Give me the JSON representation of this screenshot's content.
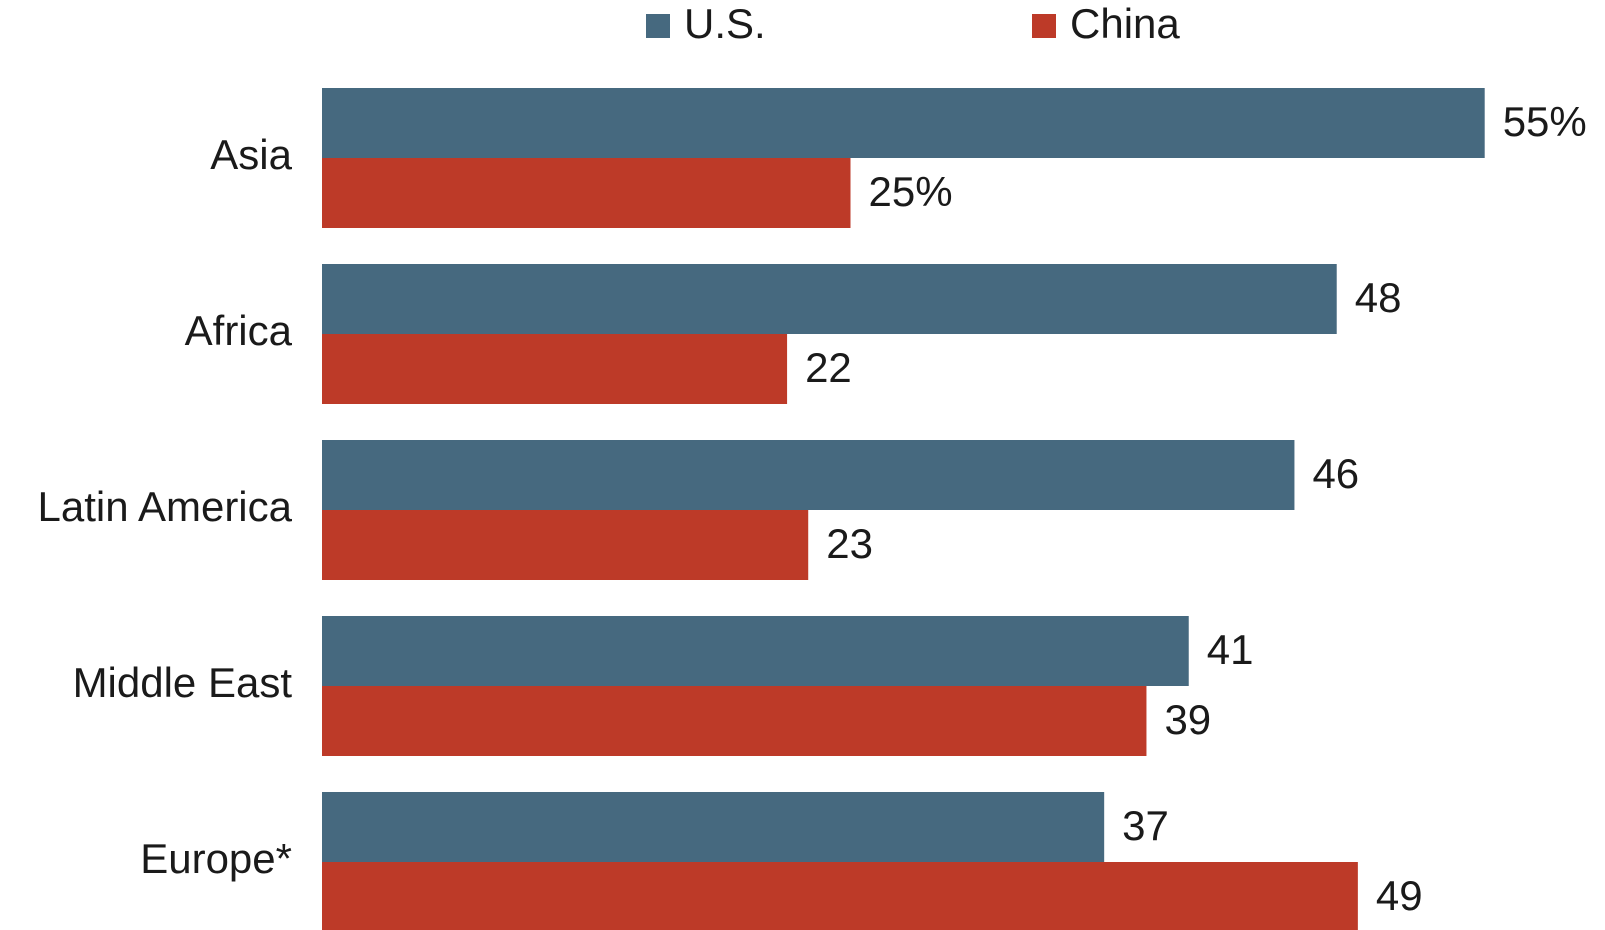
{
  "chart_data": {
    "type": "bar",
    "orientation": "horizontal",
    "categories": [
      "Asia",
      "Africa",
      "Latin America",
      "Middle East",
      "Europe*"
    ],
    "series": [
      {
        "name": "U.S.",
        "color": "#46697f",
        "values": [
          55,
          48,
          46,
          41,
          37
        ],
        "labels": [
          "55%",
          "48",
          "46",
          "41",
          "37"
        ]
      },
      {
        "name": "China",
        "color": "#bd3a28",
        "values": [
          25,
          22,
          23,
          39,
          49
        ],
        "labels": [
          "25%",
          "22",
          "23",
          "39",
          "49"
        ]
      }
    ],
    "xlim": [
      0,
      55
    ],
    "grid": false,
    "legend_position": "top"
  }
}
